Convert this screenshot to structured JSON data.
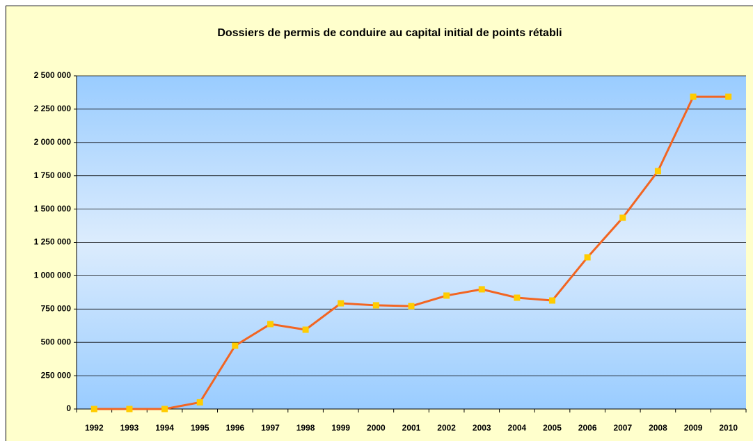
{
  "chart_data": {
    "type": "line",
    "title": "Dossiers de permis de conduire au capital initial  de points rétabli",
    "categories": [
      "1992",
      "1993",
      "1994",
      "1995",
      "1996",
      "1997",
      "1998",
      "1999",
      "2000",
      "2001",
      "2002",
      "2003",
      "2004",
      "2005",
      "2006",
      "2007",
      "2008",
      "2009",
      "2010"
    ],
    "series": [
      {
        "name": "Dossiers",
        "color": "#f26522",
        "marker_color": "#ffcc00",
        "values": [
          0,
          0,
          0,
          50000,
          475000,
          637000,
          595000,
          793000,
          778000,
          772000,
          851000,
          898000,
          835000,
          814000,
          1138000,
          1435000,
          1785000,
          2343000,
          2343000
        ]
      }
    ],
    "ylim": [
      0,
      2500000
    ],
    "yticks": [
      0,
      {
        "value": 250000,
        "label": "250 000"
      },
      {
        "value": 500000,
        "label": "500 000"
      },
      {
        "value": 750000,
        "label": "750 000"
      },
      {
        "value": 1000000,
        "label": "1 000 000"
      },
      {
        "value": 1250000,
        "label": "1 250 000"
      },
      {
        "value": 1500000,
        "label": "1 500 000"
      },
      {
        "value": 1750000,
        "label": "1 750 000"
      },
      {
        "value": 2000000,
        "label": "2 000 000"
      },
      {
        "value": 2250000,
        "label": "2 250 000"
      },
      {
        "value": 2500000,
        "label": "2 500 000"
      }
    ],
    "grid": true
  }
}
